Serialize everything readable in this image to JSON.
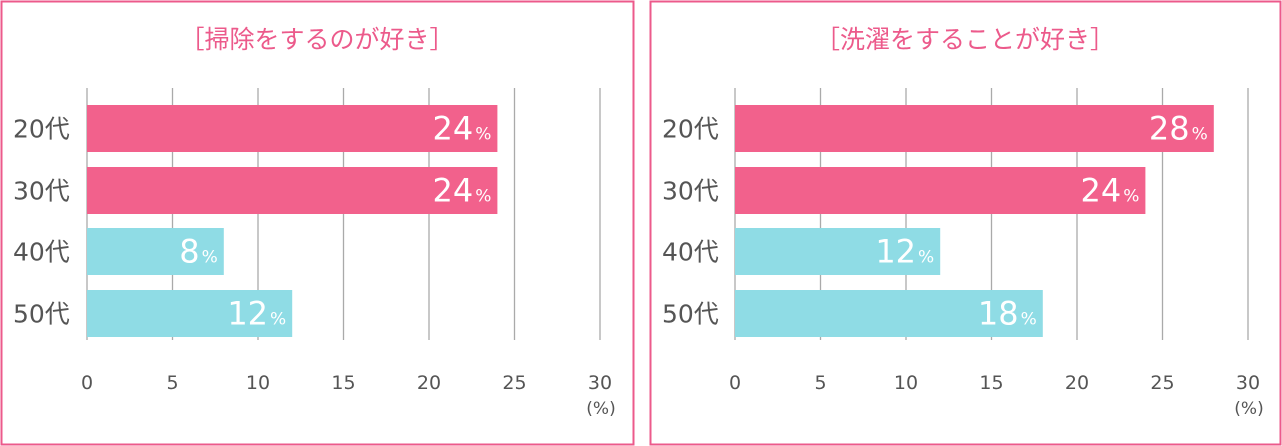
{
  "colors": {
    "border": "#ec5a8b",
    "title": "#ec5a8b",
    "bar_pink": "#f2618c",
    "bar_blue": "#8fdce5",
    "grid": "#aaaaaa",
    "text": "#555555",
    "label": "#ffffff"
  },
  "chart_data": [
    {
      "type": "bar",
      "orientation": "horizontal",
      "title": "［掃除をするのが好き］",
      "categories": [
        "20代",
        "30代",
        "40代",
        "50代"
      ],
      "values": [
        24,
        24,
        8,
        12
      ],
      "value_labels": [
        "24",
        "24",
        "8",
        "12"
      ],
      "value_suffix": "%",
      "bar_colors": [
        "#f2618c",
        "#f2618c",
        "#8fdce5",
        "#8fdce5"
      ],
      "xlim": [
        0,
        30
      ],
      "xticks": [
        "0",
        "5",
        "10",
        "15",
        "20",
        "25",
        "30"
      ],
      "unit_label": "(%)",
      "grid": true
    },
    {
      "type": "bar",
      "orientation": "horizontal",
      "title": "［洗濯をすることが好き］",
      "categories": [
        "20代",
        "30代",
        "40代",
        "50代"
      ],
      "values": [
        28,
        24,
        12,
        18
      ],
      "value_labels": [
        "28",
        "24",
        "12",
        "18"
      ],
      "value_suffix": "%",
      "bar_colors": [
        "#f2618c",
        "#f2618c",
        "#8fdce5",
        "#8fdce5"
      ],
      "xlim": [
        0,
        30
      ],
      "xticks": [
        "0",
        "5",
        "10",
        "15",
        "20",
        "25",
        "30"
      ],
      "unit_label": "(%)",
      "grid": true
    }
  ]
}
